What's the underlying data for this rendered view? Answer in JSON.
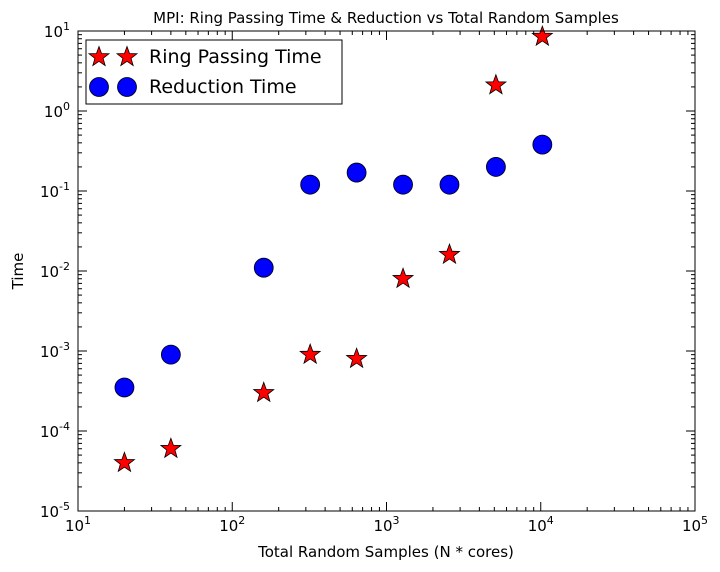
{
  "chart_data": {
    "type": "scatter",
    "title": "MPI: Ring Passing Time & Reduction vs Total Random Samples",
    "xlabel": "Total Random Samples (N * cores)",
    "ylabel": "Time",
    "xscale": "log",
    "yscale": "log",
    "xlim": [
      10,
      100000
    ],
    "ylim": [
      1e-05,
      10
    ],
    "x_ticks": [
      {
        "base": "10",
        "exp": "1"
      },
      {
        "base": "10",
        "exp": "2"
      },
      {
        "base": "10",
        "exp": "3"
      },
      {
        "base": "10",
        "exp": "4"
      },
      {
        "base": "10",
        "exp": "5"
      }
    ],
    "y_ticks": [
      {
        "base": "10",
        "exp": "-5"
      },
      {
        "base": "10",
        "exp": "-4"
      },
      {
        "base": "10",
        "exp": "-3"
      },
      {
        "base": "10",
        "exp": "-2"
      },
      {
        "base": "10",
        "exp": "-1"
      },
      {
        "base": "10",
        "exp": "0"
      },
      {
        "base": "10",
        "exp": "1"
      }
    ],
    "legend_position": "top-left",
    "series": [
      {
        "name": "Ring Passing Time",
        "marker": "star",
        "color": "#ff0000",
        "x": [
          20,
          40,
          160,
          320,
          640,
          1280,
          2560,
          5120,
          10240
        ],
        "y": [
          4e-05,
          6e-05,
          0.0003,
          0.0009,
          0.0008,
          0.008,
          0.016,
          2.1,
          8.5
        ]
      },
      {
        "name": "Reduction Time",
        "marker": "circle",
        "color": "#0000ff",
        "x": [
          20,
          40,
          160,
          320,
          640,
          1280,
          2560,
          5120,
          10240
        ],
        "y": [
          0.00035,
          0.0009,
          0.011,
          0.12,
          0.17,
          0.12,
          0.12,
          0.2,
          0.38
        ]
      }
    ]
  }
}
